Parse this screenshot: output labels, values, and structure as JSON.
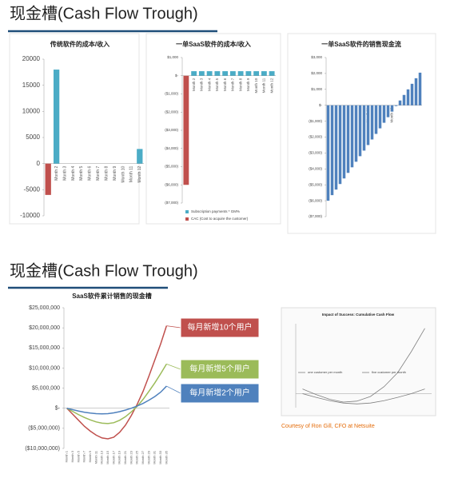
{
  "headings": [
    "现金槽(Cash Flow Trough)",
    "现金槽(Cash Flow Trough)"
  ],
  "caption": "Courtesy of Ron Gill, CFO at Netsuite",
  "chart_data": [
    {
      "type": "bar",
      "title": "传统软件的成本/收入",
      "categories": [
        "Month 1",
        "Month 2",
        "Month 3",
        "Month 4",
        "Month 5",
        "Month 6",
        "Month 7",
        "Month 8",
        "Month 9",
        "Month 10",
        "Month 11",
        "Month 12"
      ],
      "series": [
        {
          "color": "#c0504d",
          "values": [
            -6000,
            0,
            0,
            0,
            0,
            0,
            0,
            0,
            0,
            0,
            0,
            0
          ]
        },
        {
          "color": "#4bacc6",
          "values": [
            0,
            18000,
            0,
            0,
            0,
            0,
            0,
            0,
            0,
            0,
            0,
            2800
          ]
        }
      ],
      "ylim": [
        -10000,
        20000
      ],
      "yticks": [
        20000,
        15000,
        10000,
        5000,
        0,
        -5000,
        -10000
      ]
    },
    {
      "type": "bar",
      "title": "一单SaaS软件的成本/收入",
      "categories": [
        null,
        "Month 2",
        "Month 3",
        "Month 4",
        "Month 5",
        "Month 6",
        "Month 7",
        "Month 8",
        "Month 9",
        "Month 10",
        "Month 11",
        "Month 12"
      ],
      "series": [
        {
          "name": "Subscription payments * GM%",
          "color": "#4bacc6",
          "values": [
            0,
            250,
            250,
            250,
            250,
            250,
            250,
            250,
            250,
            250,
            250,
            250
          ]
        },
        {
          "name": "CAC (Cost to acquire the customer)",
          "color": "#c0504d",
          "values": [
            -6000,
            0,
            0,
            0,
            0,
            0,
            0,
            0,
            0,
            0,
            0,
            0
          ]
        }
      ],
      "ylim": [
        -7000,
        1000
      ],
      "yticks": [
        {
          "value": 1000,
          "label": "$1,000"
        },
        {
          "value": 0,
          "label": "$-"
        },
        {
          "value": -1000,
          "label": "($1,000)"
        },
        {
          "value": -2000,
          "label": "($2,000)"
        },
        {
          "value": -3000,
          "label": "($3,000)"
        },
        {
          "value": -4000,
          "label": "($4,000)"
        },
        {
          "value": -5000,
          "label": "($5,000)"
        },
        {
          "value": -6000,
          "label": "($6,000)"
        },
        {
          "value": -7000,
          "label": "($7,000)"
        }
      ]
    },
    {
      "type": "bar",
      "title": "一单SaaS软件的销售现金流",
      "categories": [
        null,
        null,
        null,
        null,
        null,
        null,
        null,
        null,
        null,
        null,
        "Month 11",
        null,
        null,
        null,
        null,
        null,
        "Month 17",
        null,
        null,
        null,
        null,
        null,
        null,
        null
      ],
      "series": [
        {
          "color": "#4f81bd",
          "values": [
            -6000,
            -5650,
            -5300,
            -4950,
            -4600,
            -4250,
            -3900,
            -3550,
            -3200,
            -2850,
            -2500,
            -2150,
            -1800,
            -1450,
            -1100,
            -750,
            -400,
            -50,
            300,
            650,
            1000,
            1350,
            1700,
            2050
          ]
        }
      ],
      "ylim": [
        -7000,
        3000
      ],
      "yticks": [
        {
          "value": 3000,
          "label": "$3,000"
        },
        {
          "value": 2000,
          "label": "$2,000"
        },
        {
          "value": 1000,
          "label": "$1,000"
        },
        {
          "value": 0,
          "label": "$-"
        },
        {
          "value": -1000,
          "label": "($1,000)"
        },
        {
          "value": -2000,
          "label": "($2,000)"
        },
        {
          "value": -3000,
          "label": "($3,000)"
        },
        {
          "value": -4000,
          "label": "($4,000)"
        },
        {
          "value": -5000,
          "label": "($5,000)"
        },
        {
          "value": -6000,
          "label": "($6,000)"
        },
        {
          "value": -7000,
          "label": "($7,000)"
        }
      ]
    },
    {
      "type": "line",
      "title": "SaaS软件累计销售的现金槽",
      "categories": [
        "Month 1",
        "Month 3",
        "Month 5",
        "Month 7",
        "Month 9",
        "Month 11",
        "Month 13",
        "Month 15",
        "Month 17",
        "Month 19",
        "Month 21",
        "Month 23",
        "Month 25",
        "Month 27",
        "Month 29",
        "Month 31",
        "Month 33",
        "Month 35"
      ],
      "series": [
        {
          "name": "每月新增10个用户",
          "color": "#c0504d",
          "values": [
            0,
            -1500000,
            -3000000,
            -4500000,
            -5700000,
            -6700000,
            -7400000,
            -7600000,
            -7200000,
            -6000000,
            -4200000,
            -1800000,
            1000000,
            4200000,
            8000000,
            12000000,
            16000000,
            20500000
          ]
        },
        {
          "name": "每月新增5个用户",
          "color": "#9bbb59",
          "values": [
            0,
            -800000,
            -1600000,
            -2300000,
            -2900000,
            -3400000,
            -3700000,
            -3800000,
            -3600000,
            -3000000,
            -2100000,
            -900000,
            500000,
            2200000,
            4200000,
            6300000,
            8600000,
            11000000
          ]
        },
        {
          "name": "每月新增2个用户",
          "color": "#4f81bd",
          "values": [
            0,
            -350000,
            -700000,
            -1000000,
            -1200000,
            -1350000,
            -1400000,
            -1350000,
            -1150000,
            -850000,
            -450000,
            0,
            550000,
            1200000,
            2000000,
            2900000,
            4000000,
            5500000
          ]
        }
      ],
      "ylim": [
        -10000000,
        25000000
      ],
      "yticks": [
        {
          "value": 25000000,
          "label": "$25,000,000"
        },
        {
          "value": 20000000,
          "label": "$20,000,000"
        },
        {
          "value": 15000000,
          "label": "$15,000,000"
        },
        {
          "value": 10000000,
          "label": "$10,000,000"
        },
        {
          "value": 5000000,
          "label": "$5,000,000"
        },
        {
          "value": 0,
          "label": "$-"
        },
        {
          "value": -5000000,
          "label": "($5,000,000)"
        },
        {
          "value": -10000000,
          "label": "($10,000,000)"
        }
      ]
    },
    {
      "type": "line",
      "title": "Impact of Success: Cumulative Cash Flow",
      "series": [
        {
          "name": "one customer per month",
          "color": "#7f7f7f",
          "values": [
            0,
            -8000,
            -15000,
            -20000,
            -22000,
            -20000,
            -15000,
            -8000,
            0,
            10000
          ]
        },
        {
          "name": "five customer per month",
          "color": "#7f7f7f",
          "values": [
            10000,
            -2000,
            -12000,
            -18000,
            -16000,
            -6000,
            15000,
            45000,
            90000,
            140000
          ]
        }
      ],
      "ylim": [
        -30000,
        150000
      ]
    }
  ]
}
